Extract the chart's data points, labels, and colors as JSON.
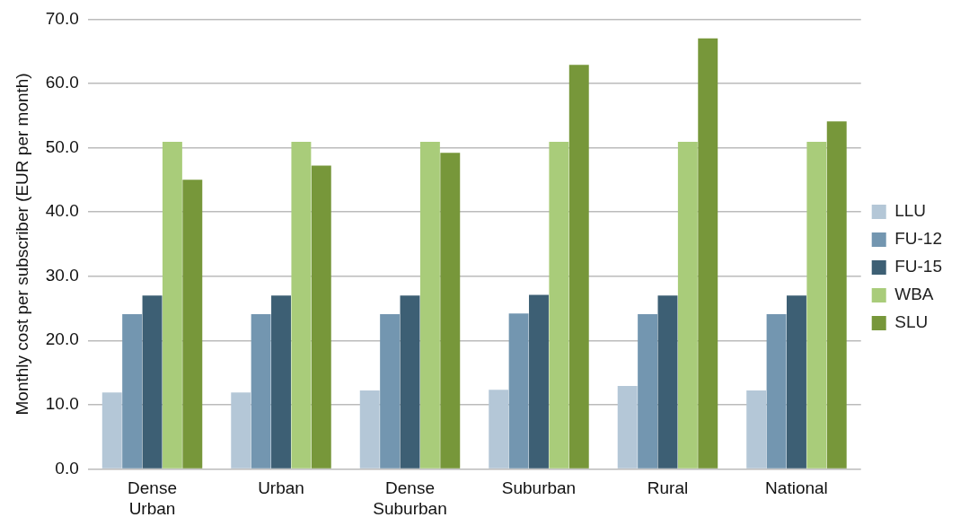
{
  "chart_data": {
    "type": "bar",
    "ylabel": "Monthly cost per subscriber (EUR per month)",
    "categories": [
      "Dense Urban",
      "Urban",
      "Dense Suburban",
      "Suburban",
      "Rural",
      "National"
    ],
    "series": [
      {
        "name": "LLU",
        "color": "#b4c7d7",
        "values": [
          11.9,
          11.9,
          12.2,
          12.3,
          12.9,
          12.2
        ]
      },
      {
        "name": "FU-12",
        "color": "#7396b0",
        "values": [
          24.1,
          24.1,
          24.1,
          24.2,
          24.1,
          24.1
        ]
      },
      {
        "name": "FU-15",
        "color": "#3d5f74",
        "values": [
          27.0,
          27.0,
          27.0,
          27.1,
          27.0,
          27.0
        ]
      },
      {
        "name": "WBA",
        "color": "#a9cc7a",
        "values": [
          50.9,
          50.9,
          50.9,
          50.9,
          50.9,
          50.9
        ]
      },
      {
        "name": "SLU",
        "color": "#77973a",
        "values": [
          45.0,
          47.2,
          49.2,
          62.9,
          67.0,
          54.1
        ]
      }
    ],
    "ylim": [
      0,
      70
    ],
    "yticks": [
      {
        "value": 0,
        "label": "0.0"
      },
      {
        "value": 10,
        "label": "10.0"
      },
      {
        "value": 20,
        "label": "20.0"
      },
      {
        "value": 30,
        "label": "30.0"
      },
      {
        "value": 40,
        "label": "40.0"
      },
      {
        "value": 50,
        "label": "50.0"
      },
      {
        "value": 60,
        "label": "60.0"
      },
      {
        "value": 70,
        "label": "70.0"
      }
    ],
    "grid": "y",
    "legend": "right"
  }
}
